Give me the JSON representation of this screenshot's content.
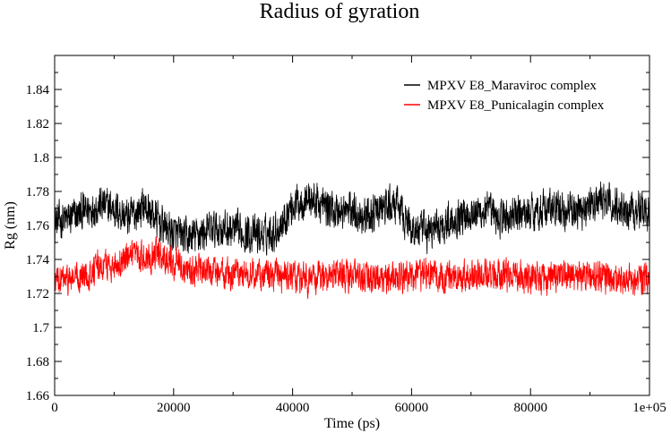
{
  "chart_data": {
    "type": "line",
    "title": "Radius of gyration",
    "xlabel": "Time (ps)",
    "ylabel": "Rg (nm)",
    "xlim": [
      0,
      100000
    ],
    "ylim": [
      1.66,
      1.86
    ],
    "x_ticks": [
      0,
      20000,
      40000,
      60000,
      80000,
      100000
    ],
    "x_tick_labels": [
      "0",
      "20000",
      "40000",
      "60000",
      "80000",
      "1e+05"
    ],
    "y_ticks": [
      1.66,
      1.68,
      1.7,
      1.72,
      1.74,
      1.76,
      1.78,
      1.8,
      1.82,
      1.84
    ],
    "y_tick_labels": [
      "1.66",
      "1.68",
      "1.7",
      "1.72",
      "1.74",
      "1.76",
      "1.78",
      "1.8",
      "1.82",
      "1.84"
    ],
    "legend_position": "top-right",
    "series": [
      {
        "name": "MPXV E8_Maraviroc complex",
        "color": "#000000",
        "x": [
          0,
          2500,
          5000,
          7500,
          10000,
          12500,
          15000,
          17500,
          20000,
          22500,
          25000,
          27500,
          30000,
          32500,
          35000,
          37500,
          40000,
          42500,
          45000,
          47500,
          50000,
          52500,
          55000,
          57500,
          60000,
          62500,
          65000,
          67500,
          70000,
          72500,
          75000,
          77500,
          80000,
          82500,
          85000,
          87500,
          90000,
          92500,
          95000,
          97500,
          100000
        ],
        "mean": [
          1.762,
          1.764,
          1.768,
          1.772,
          1.77,
          1.764,
          1.772,
          1.762,
          1.755,
          1.752,
          1.756,
          1.758,
          1.757,
          1.755,
          1.754,
          1.758,
          1.772,
          1.776,
          1.772,
          1.768,
          1.769,
          1.765,
          1.77,
          1.772,
          1.758,
          1.756,
          1.76,
          1.765,
          1.768,
          1.768,
          1.764,
          1.766,
          1.768,
          1.77,
          1.769,
          1.768,
          1.772,
          1.774,
          1.77,
          1.77,
          1.768
        ],
        "amplitude": 0.011
      },
      {
        "name": "MPXV E8_Punicalagin complex",
        "color": "#ff0000",
        "x": [
          0,
          2500,
          5000,
          7500,
          10000,
          12500,
          15000,
          17500,
          20000,
          22500,
          25000,
          27500,
          30000,
          32500,
          35000,
          37500,
          40000,
          42500,
          45000,
          47500,
          50000,
          52500,
          55000,
          57500,
          60000,
          62500,
          65000,
          67500,
          70000,
          72500,
          75000,
          77500,
          80000,
          82500,
          85000,
          87500,
          90000,
          92500,
          95000,
          97500,
          100000
        ],
        "mean": [
          1.727,
          1.728,
          1.73,
          1.736,
          1.737,
          1.74,
          1.742,
          1.743,
          1.738,
          1.734,
          1.733,
          1.732,
          1.731,
          1.732,
          1.731,
          1.73,
          1.729,
          1.728,
          1.73,
          1.731,
          1.729,
          1.73,
          1.729,
          1.729,
          1.73,
          1.731,
          1.729,
          1.729,
          1.731,
          1.731,
          1.731,
          1.73,
          1.729,
          1.729,
          1.731,
          1.731,
          1.73,
          1.728,
          1.728,
          1.728,
          1.729
        ],
        "amplitude": 0.009
      }
    ]
  }
}
